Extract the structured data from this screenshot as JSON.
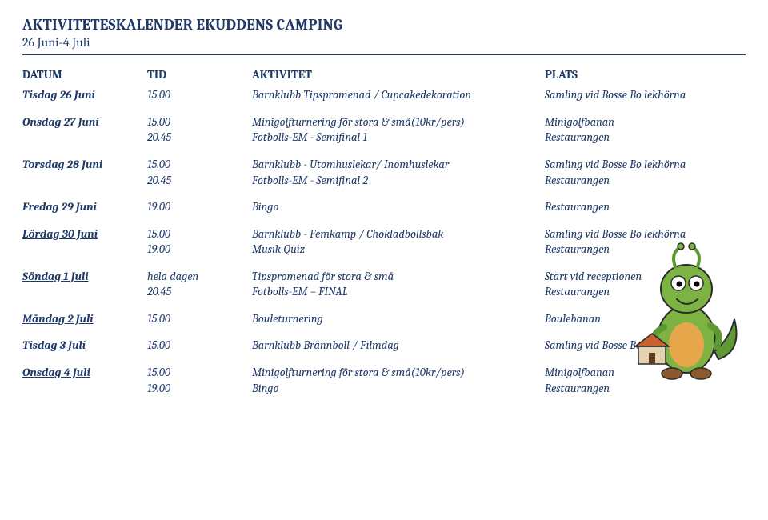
{
  "header": {
    "title": "AKTIVITETESKALENDER EKUDDENS CAMPING",
    "subtitle": "26 Juni-4 Juli"
  },
  "colors": {
    "text": "#1f3a69",
    "background": "#ffffff",
    "rule": "#1f3a69"
  },
  "columns": {
    "datum": "DATUM",
    "tid": "TID",
    "aktivitet": "AKTIVITET",
    "plats": "PLATS"
  },
  "schedule": [
    {
      "date": "Tisdag 26 Juni",
      "underline": false,
      "rows": [
        {
          "tid": "15.00",
          "aktivitet": "Barnklubb Tipspromenad / Cupcakedekoration",
          "plats": "Samling vid Bosse Bo lekhörna"
        }
      ]
    },
    {
      "date": "Onsdag 27 Juni",
      "underline": false,
      "rows": [
        {
          "tid": "15.00",
          "aktivitet": "Minigolfturnering för stora & små(10kr/pers)",
          "plats": "Minigolfbanan"
        },
        {
          "tid": "20.45",
          "aktivitet": "Fotbolls-EM - Semifinal 1",
          "plats": "Restaurangen"
        }
      ]
    },
    {
      "date": "Torsdag 28 Juni",
      "underline": false,
      "rows": [
        {
          "tid": "15.00",
          "aktivitet": "Barnklubb - Utomhuslekar/ Inomhuslekar",
          "plats": "Samling vid Bosse Bo lekhörna"
        },
        {
          "tid": "20.45",
          "aktivitet": "Fotbolls-EM - Semifinal 2",
          "plats": "Restaurangen"
        }
      ]
    },
    {
      "date": "Fredag 29 Juni",
      "underline": false,
      "rows": [
        {
          "tid": "19.00",
          "aktivitet": "Bingo",
          "plats": "Restaurangen"
        }
      ]
    },
    {
      "date": "Lördag 30 Juni",
      "underline": true,
      "rows": [
        {
          "tid": "15.00",
          "aktivitet": "Barnklubb - Femkamp / Chokladbollsbak",
          "plats": "Samling vid Bosse Bo lekhörna"
        },
        {
          "tid": "19.00",
          "aktivitet": "Musik Quiz",
          "plats": "Restaurangen"
        }
      ]
    },
    {
      "date": "Söndag 1 Juli",
      "underline": true,
      "rows": [
        {
          "tid": "hela dagen",
          "aktivitet": "Tipspromenad för stora & små",
          "plats": "Start vid receptionen"
        },
        {
          "tid": "20.45",
          "aktivitet": "Fotbolls-EM – FINAL",
          "plats": "Restaurangen"
        }
      ]
    },
    {
      "date": "Måndag 2 Juli",
      "underline": true,
      "rows": [
        {
          "tid": "15.00",
          "aktivitet": "Bouleturnering",
          "plats": "Boulebanan"
        }
      ]
    },
    {
      "date": "Tisdag 3 Juli",
      "underline": true,
      "rows": [
        {
          "tid": "15.00",
          "aktivitet": "Barnklubb Brännboll / Filmdag",
          "plats": "Samling vid Bosse Bo Lekhörna"
        }
      ]
    },
    {
      "date": "Onsdag 4 Juli",
      "underline": true,
      "rows": [
        {
          "tid": "15.00",
          "aktivitet": "Minigolfturnering för stora & små(10kr/pers)",
          "plats": "Minigolfbanan"
        },
        {
          "tid": "19.00",
          "aktivitet": "Bingo",
          "plats": "Restaurangen"
        }
      ]
    }
  ],
  "mascot": {
    "body": "#7db342",
    "body2": "#5f9933",
    "belly": "#e6a64a",
    "brown": "#8a5a2c",
    "roof": "#c9622d",
    "wall": "#e3d3b1",
    "door": "#5a3b1f",
    "outline": "#2d2d2d",
    "eye": "#ffffff",
    "pupil": "#000000"
  }
}
